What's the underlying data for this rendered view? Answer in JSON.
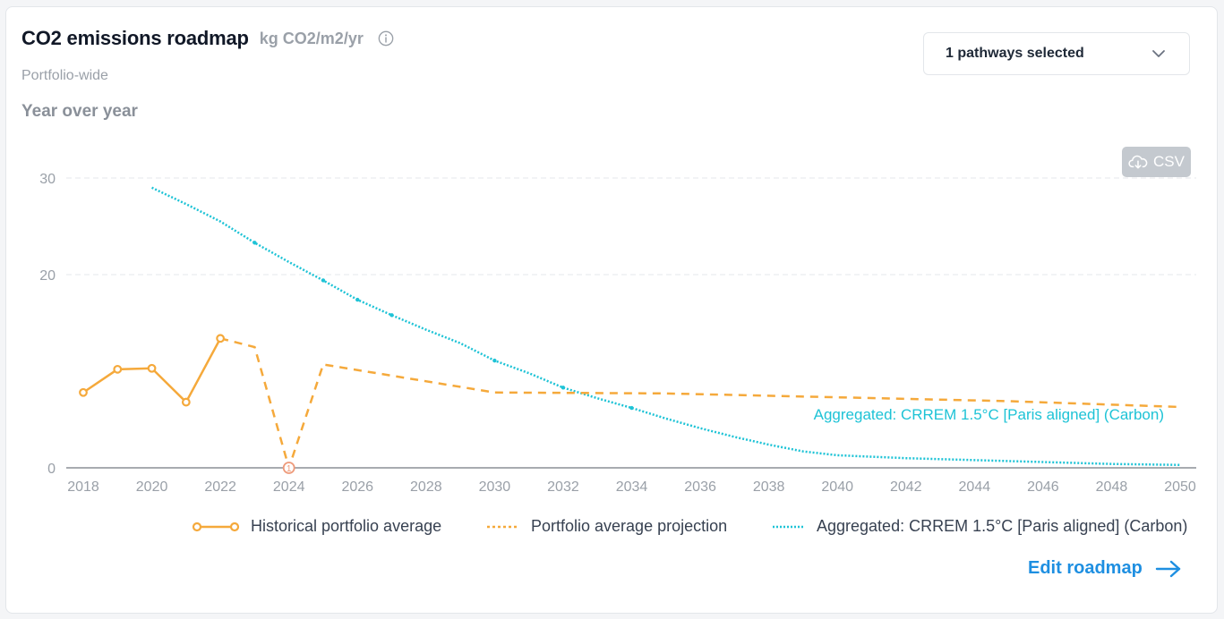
{
  "header": {
    "title": "CO2 emissions roadmap",
    "unit": "kg CO2/m2/yr",
    "subtitle": "Portfolio-wide",
    "section": "Year over year"
  },
  "dropdown": {
    "label": "1 pathways selected",
    "icon": "chevron-down-icon"
  },
  "csv_button": {
    "label": "CSV",
    "icon": "cloud-download-icon"
  },
  "edit_link": {
    "label": "Edit roadmap",
    "icon": "arrow-right-icon"
  },
  "colors": {
    "historical": "#f5a93b",
    "projection": "#f5a93b",
    "pathway": "#1ec3d6",
    "link": "#1e8fe1"
  },
  "chart_data": {
    "type": "line",
    "xlim": [
      2018,
      2050
    ],
    "ylim": [
      0,
      30
    ],
    "yticks": [
      0,
      20,
      30
    ],
    "xticks": [
      2018,
      2020,
      2022,
      2024,
      2026,
      2028,
      2030,
      2032,
      2034,
      2036,
      2038,
      2040,
      2042,
      2044,
      2046,
      2048,
      2050
    ],
    "grid": true,
    "legend_position": "bottom-right",
    "series": [
      {
        "name": "Historical portfolio average",
        "style": "solid-markers",
        "x": [
          2018,
          2019,
          2020,
          2021,
          2022
        ],
        "y": [
          7.8,
          10.2,
          10.3,
          6.8,
          13.4
        ]
      },
      {
        "name": "Portfolio average projection",
        "style": "dashed",
        "x": [
          2022,
          2023,
          2024,
          2025,
          2030,
          2035,
          2040,
          2045,
          2050
        ],
        "y": [
          13.4,
          12.5,
          0,
          10.7,
          7.8,
          7.7,
          7.3,
          6.9,
          6.3
        ]
      },
      {
        "name": "Aggregated: CRREM 1.5°C [Paris aligned] (Carbon)",
        "style": "dotted",
        "x": [
          2020,
          2021,
          2022,
          2023,
          2024,
          2025,
          2026,
          2027,
          2028,
          2029,
          2030,
          2031,
          2032,
          2033,
          2034,
          2035,
          2036,
          2037,
          2038,
          2039,
          2040,
          2042,
          2044,
          2046,
          2048,
          2050
        ],
        "y": [
          29.0,
          27.3,
          25.5,
          23.3,
          21.3,
          19.4,
          17.4,
          15.8,
          14.3,
          12.9,
          11.1,
          9.8,
          8.3,
          7.2,
          6.2,
          5.1,
          4.1,
          3.2,
          2.4,
          1.7,
          1.3,
          1.0,
          0.8,
          0.6,
          0.4,
          0.3
        ],
        "label": "Aggregated: CRREM 1.5°C [Paris aligned] (Carbon)"
      }
    ],
    "annotations": [
      {
        "text": "1",
        "x": 2024,
        "y": 0
      }
    ]
  }
}
